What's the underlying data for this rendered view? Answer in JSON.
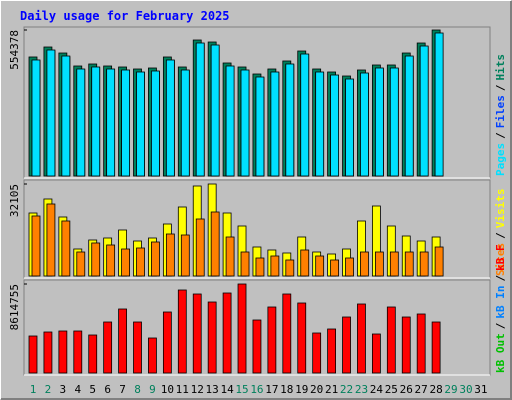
{
  "title": "Daily usage for February 2025",
  "legend_separator": "/",
  "chart_data": [
    {
      "type": "bar",
      "ylim": [
        0,
        554378
      ],
      "yticks": [
        554378
      ],
      "series": [
        {
          "name": "Hits",
          "color": "#00805c",
          "values": [
            451900,
            489800,
            467000,
            417700,
            425300,
            417700,
            413900,
            406300,
            410100,
            451900,
            413900,
            516400,
            508800,
            429100,
            413900,
            387300,
            406300,
            436700,
            474600,
            406300,
            394900,
            379700,
            402500,
            421500,
            421500,
            467000,
            505000,
            554378,
            null,
            null,
            null
          ]
        },
        {
          "name": "Files",
          "color": "#0040ff",
          "values": [
            437500,
            475400,
            452600,
            403300,
            410900,
            403300,
            399500,
            391900,
            395700,
            437500,
            399500,
            502000,
            494400,
            414700,
            399500,
            372900,
            391900,
            422300,
            460200,
            391900,
            380500,
            365300,
            388100,
            407100,
            407100,
            452600,
            490600,
            539978,
            null,
            null,
            null
          ]
        },
        {
          "name": "Pages",
          "color": "#00e0ff",
          "values": [
            440500,
            478400,
            455600,
            406300,
            413900,
            406300,
            402500,
            394900,
            398700,
            440500,
            402500,
            505000,
            497400,
            417700,
            402500,
            375900,
            394900,
            425300,
            463200,
            394900,
            383500,
            368300,
            391100,
            410100,
            410100,
            455600,
            493600,
            542978,
            null,
            null,
            null
          ]
        }
      ]
    },
    {
      "type": "bar",
      "ylim": [
        0,
        32105
      ],
      "yticks": [
        32105
      ],
      "series": [
        {
          "name": "Visits",
          "color": "#ffff00",
          "values": [
            21987,
            26873,
            20591,
            9423,
            12564,
            13262,
            16054,
            12215,
            13262,
            18148,
            24081,
            31410,
            32105,
            21987,
            17450,
            10121,
            9074,
            8027,
            13611,
            8376,
            7678,
            9423,
            19195,
            24430,
            17450,
            13960,
            12215,
            13611,
            null,
            null,
            null
          ]
        },
        {
          "name": "Sites",
          "color": "#ff8000",
          "values": [
            20940,
            25128,
            19195,
            8376,
            11517,
            10819,
            9423,
            9772,
            11866,
            14658,
            14309,
            19893,
            22336,
            13611,
            8376,
            6282,
            6980,
            5584,
            9074,
            6980,
            5584,
            6282,
            8376,
            8376,
            8376,
            8376,
            8376,
            10121,
            null,
            null,
            null
          ]
        }
      ]
    },
    {
      "type": "bar",
      "ylim": [
        0,
        8614755
      ],
      "yticks": [
        8614755
      ],
      "categories": [
        "1",
        "2",
        "3",
        "4",
        "5",
        "6",
        "7",
        "8",
        "9",
        "10",
        "11",
        "12",
        "13",
        "14",
        "15",
        "16",
        "17",
        "18",
        "19",
        "20",
        "21",
        "22",
        "23",
        "24",
        "25",
        "26",
        "27",
        "28",
        "29",
        "30",
        "31"
      ],
      "category_colors": [
        "#00805c",
        "#00805c",
        "#000000",
        "#000000",
        "#000000",
        "#000000",
        "#000000",
        "#00805c",
        "#00805c",
        "#000000",
        "#000000",
        "#000000",
        "#000000",
        "#000000",
        "#00805c",
        "#00805c",
        "#000000",
        "#000000",
        "#000000",
        "#000000",
        "#000000",
        "#00805c",
        "#00805c",
        "#000000",
        "#000000",
        "#000000",
        "#000000",
        "#000000",
        "#00805c",
        "#00805c",
        "#000000"
      ],
      "series": [
        {
          "name": "kB F",
          "color": "#ff0000",
          "values": [
            3581415,
            3968595,
            4065390,
            4065390,
            3678210,
            4936545,
            6194880,
            4936545,
            3387825,
            5904495,
            8033985,
            7646805,
            6872445,
            7743600,
            8614755,
            5130135,
            6388470,
            7646805,
            6775650,
            3871800,
            4259000,
            5420520,
            6678855,
            3775005,
            6388470,
            5420520,
            5710905,
            4936545,
            null,
            null,
            null
          ]
        },
        {
          "name": "kB In",
          "color": "#0080ff",
          "values": [
            null,
            null,
            null,
            null,
            null,
            null,
            null,
            null,
            null,
            null,
            null,
            null,
            null,
            null,
            null,
            null,
            null,
            null,
            null,
            null,
            null,
            null,
            null,
            null,
            null,
            null,
            null,
            null,
            null,
            null,
            null
          ]
        },
        {
          "name": "kB Out",
          "color": "#00c000",
          "values": [
            null,
            null,
            null,
            null,
            null,
            null,
            null,
            null,
            null,
            null,
            null,
            null,
            null,
            null,
            null,
            null,
            null,
            null,
            null,
            null,
            null,
            null,
            null,
            null,
            null,
            null,
            null,
            null,
            null,
            null,
            null
          ]
        }
      ]
    }
  ]
}
